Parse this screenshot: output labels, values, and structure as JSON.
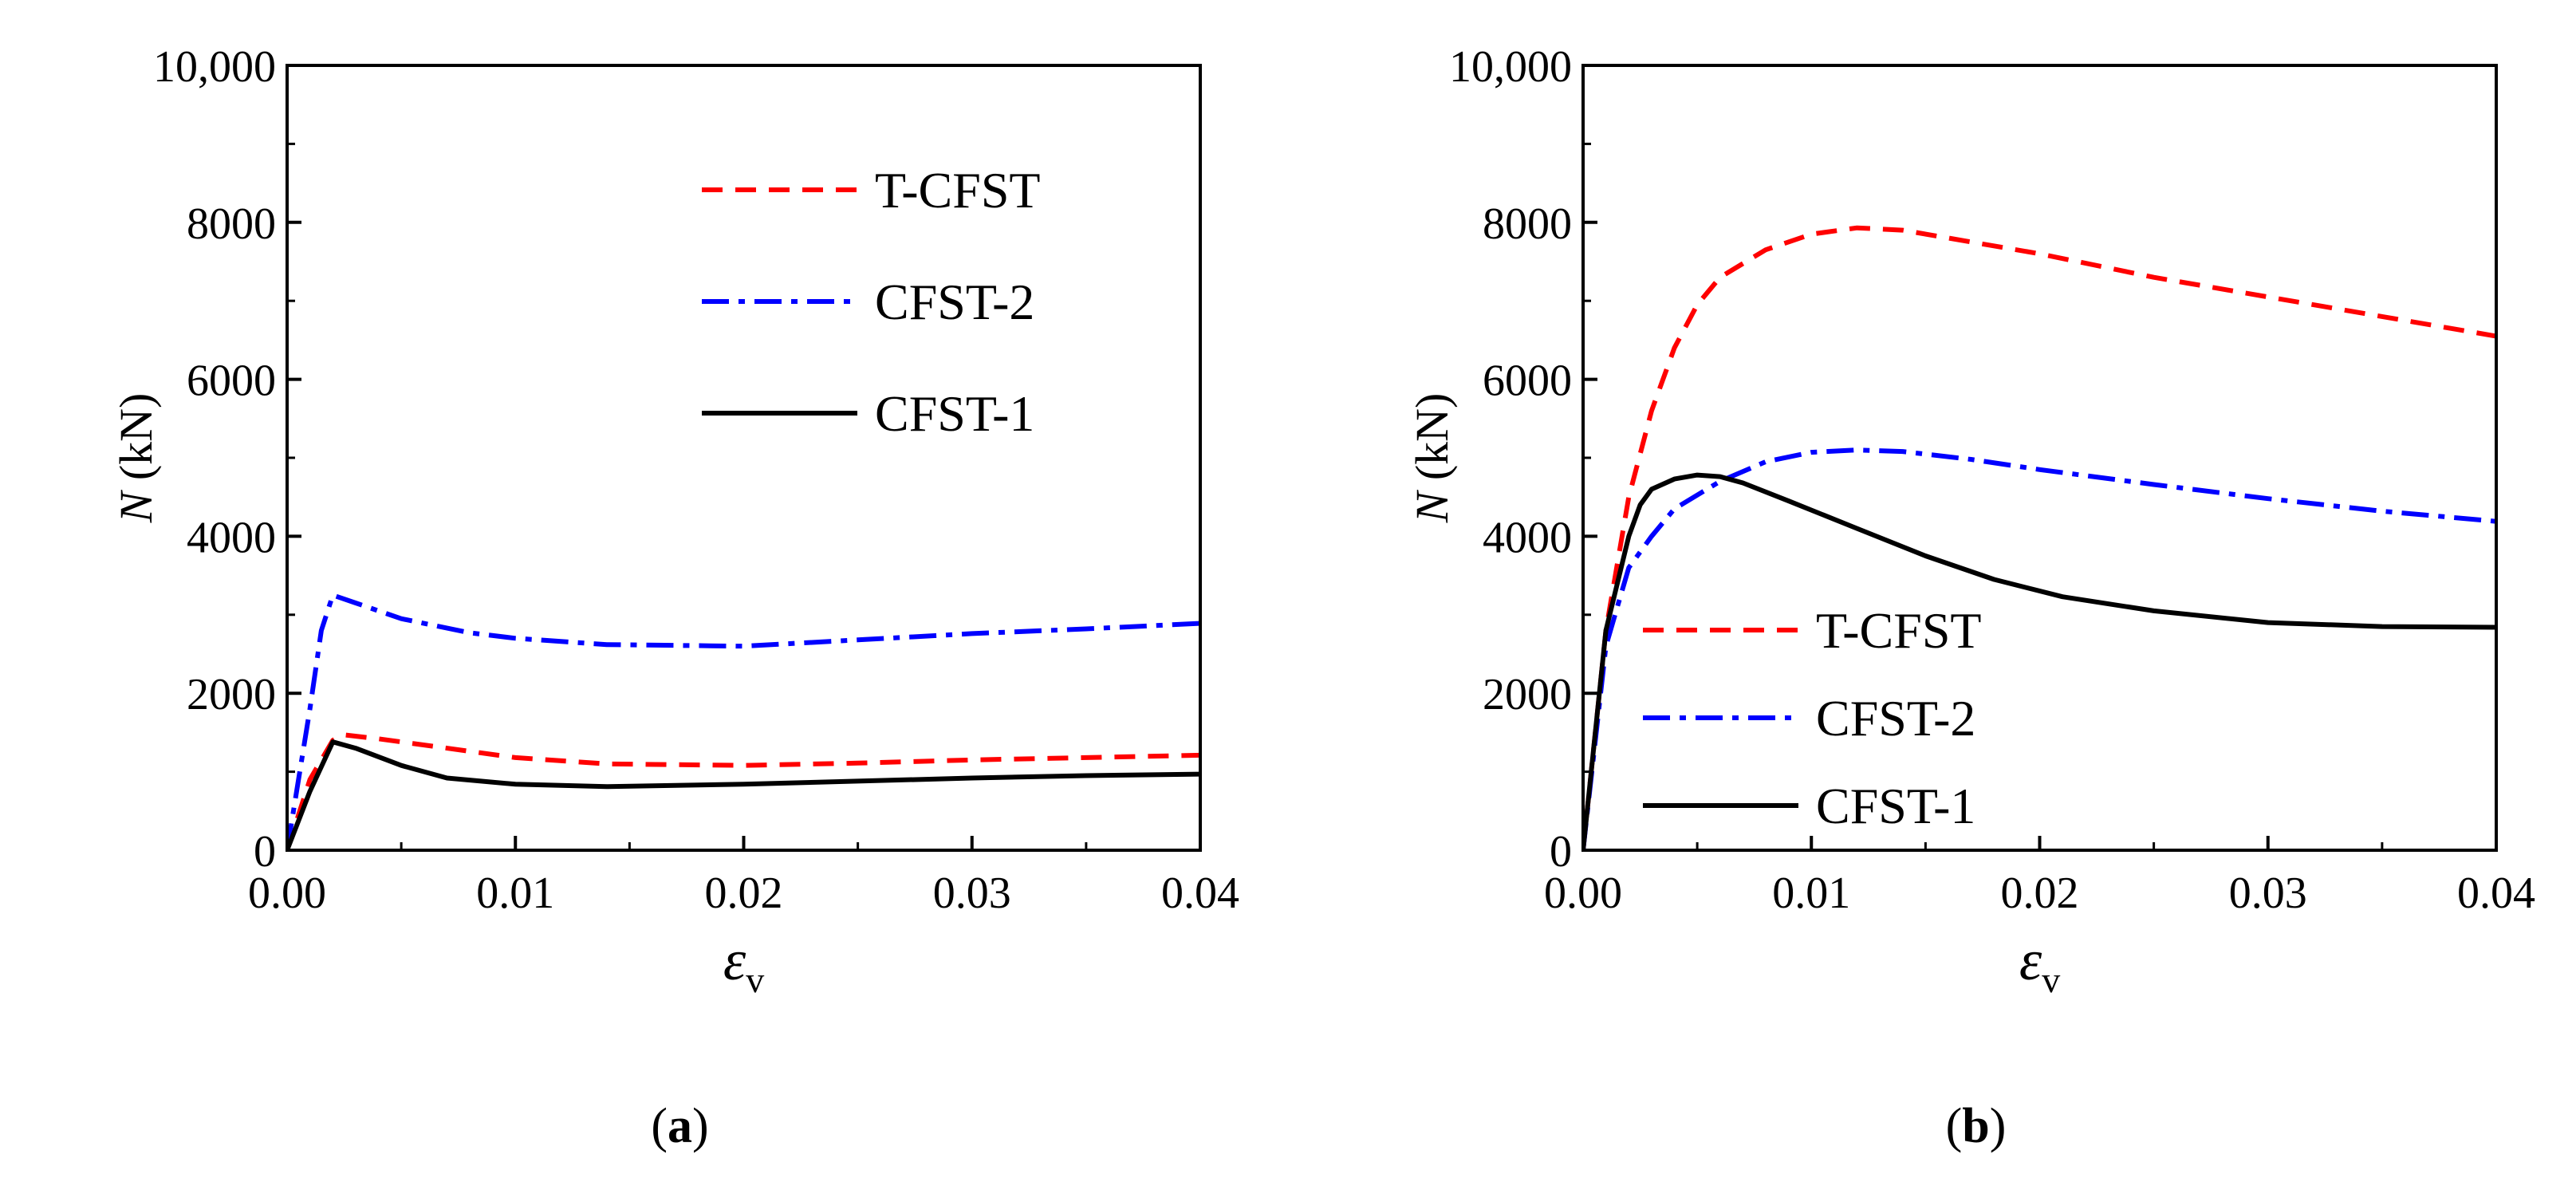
{
  "chart_data": [
    {
      "type": "line",
      "panel_label": "a",
      "xlabel": "ε",
      "xlabel_sub": "v",
      "ylabel": "N",
      "ylabel_unit": "(kN)",
      "xlim": [
        0,
        0.04
      ],
      "ylim": [
        0,
        10000
      ],
      "xticks": [
        "0.00",
        "0.01",
        "0.02",
        "0.03",
        "0.04"
      ],
      "yticks": [
        "0",
        "2000",
        "4000",
        "6000",
        "8000",
        "10,000"
      ],
      "legend_position": "top-right",
      "series": [
        {
          "name": "T-CFST",
          "color": "#ff0000",
          "style": "dashed",
          "x": [
            0,
            0.001,
            0.002,
            0.0025,
            0.004,
            0.006,
            0.008,
            0.01,
            0.014,
            0.02,
            0.025,
            0.03,
            0.035,
            0.04
          ],
          "y": [
            0,
            900,
            1400,
            1470,
            1420,
            1340,
            1260,
            1180,
            1100,
            1080,
            1110,
            1150,
            1180,
            1210
          ]
        },
        {
          "name": "CFST-2",
          "color": "#0000ff",
          "style": "dashdot",
          "x": [
            0,
            0.001,
            0.0015,
            0.002,
            0.003,
            0.005,
            0.008,
            0.01,
            0.014,
            0.02,
            0.025,
            0.03,
            0.035,
            0.04
          ],
          "y": [
            0,
            1800,
            2800,
            3250,
            3150,
            2950,
            2770,
            2700,
            2620,
            2600,
            2680,
            2760,
            2820,
            2890
          ]
        },
        {
          "name": "CFST-1",
          "color": "#000000",
          "style": "solid",
          "x": [
            0,
            0.001,
            0.002,
            0.003,
            0.005,
            0.007,
            0.01,
            0.014,
            0.02,
            0.025,
            0.03,
            0.035,
            0.04
          ],
          "y": [
            0,
            750,
            1380,
            1300,
            1080,
            920,
            840,
            810,
            840,
            880,
            920,
            950,
            970
          ]
        }
      ]
    },
    {
      "type": "line",
      "panel_label": "b",
      "xlabel": "ε",
      "xlabel_sub": "v",
      "ylabel": "N",
      "ylabel_unit": "(kN)",
      "xlim": [
        0,
        0.04
      ],
      "ylim": [
        0,
        10000
      ],
      "xticks": [
        "0.00",
        "0.01",
        "0.02",
        "0.03",
        "0.04"
      ],
      "yticks": [
        "0",
        "2000",
        "4000",
        "6000",
        "8000",
        "10,000"
      ],
      "legend_position": "bottom-left",
      "series": [
        {
          "name": "T-CFST",
          "color": "#ff0000",
          "style": "dashed",
          "x": [
            0,
            0.001,
            0.002,
            0.003,
            0.004,
            0.005,
            0.006,
            0.008,
            0.01,
            0.012,
            0.014,
            0.017,
            0.02,
            0.025,
            0.03,
            0.035,
            0.04
          ],
          "y": [
            0,
            2800,
            4500,
            5600,
            6400,
            6950,
            7300,
            7650,
            7850,
            7930,
            7900,
            7750,
            7600,
            7300,
            7050,
            6800,
            6550
          ]
        },
        {
          "name": "CFST-2",
          "color": "#0000ff",
          "style": "dashdot",
          "x": [
            0,
            0.001,
            0.002,
            0.003,
            0.004,
            0.006,
            0.008,
            0.01,
            0.012,
            0.014,
            0.017,
            0.02,
            0.025,
            0.03,
            0.035,
            0.04
          ],
          "y": [
            0,
            2600,
            3600,
            4000,
            4350,
            4700,
            4950,
            5070,
            5100,
            5080,
            4980,
            4850,
            4660,
            4480,
            4320,
            4190
          ]
        },
        {
          "name": "CFST-1",
          "color": "#000000",
          "style": "solid",
          "x": [
            0,
            0.001,
            0.002,
            0.0025,
            0.003,
            0.004,
            0.005,
            0.006,
            0.007,
            0.009,
            0.012,
            0.015,
            0.018,
            0.021,
            0.025,
            0.03,
            0.035,
            0.04
          ],
          "y": [
            0,
            2800,
            4000,
            4400,
            4600,
            4730,
            4780,
            4760,
            4680,
            4450,
            4100,
            3750,
            3450,
            3230,
            3050,
            2900,
            2850,
            2840
          ]
        }
      ]
    }
  ]
}
